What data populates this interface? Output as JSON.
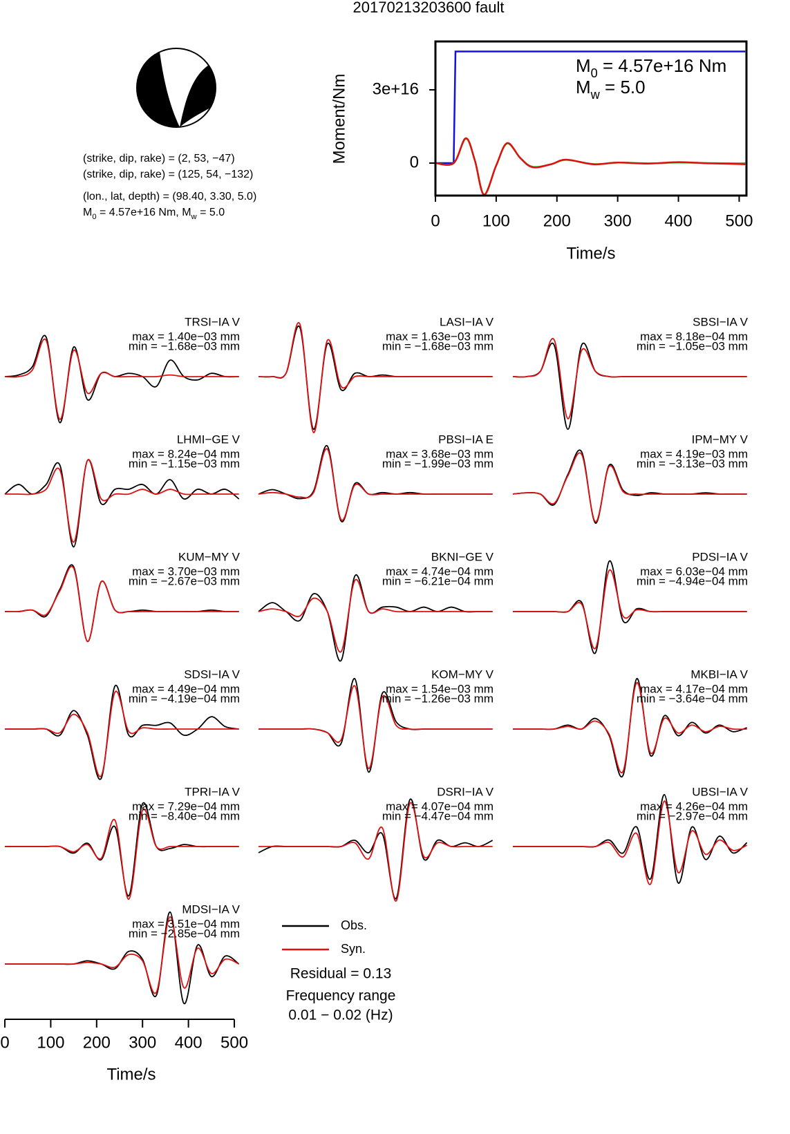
{
  "title": "20170213203600 fault",
  "mechanism": {
    "planes": [
      "(strike, dip, rake) = (2, 53, −47)",
      "(strike, dip, rake) = (125, 54, −132)"
    ],
    "location": "(lon., lat, depth) = (98.40, 3.30, 5.0)",
    "magnitude_parts": [
      {
        "text": "M"
      },
      {
        "sub": "0"
      },
      {
        "text": " = 4.57e+16 Nm, M"
      },
      {
        "sub": "w"
      },
      {
        "text": " = 5.0"
      }
    ]
  },
  "moment_chart": {
    "type": "line",
    "xlabel": "Time/s",
    "ylabel": "Moment/Nm",
    "xlim": [
      0,
      512
    ],
    "ylim": [
      -1.33e+16,
      4.98e+16
    ],
    "xticks": [
      0,
      100,
      200,
      300,
      400,
      500
    ],
    "yticks": [
      0,
      {
        "value": 3e+16,
        "label": "3e+16"
      }
    ],
    "annotations": [
      [
        {
          "text": "M"
        },
        {
          "sub": "0"
        },
        {
          "text": " = 4.57e+16 Nm"
        }
      ],
      [
        {
          "text": "M"
        },
        {
          "sub": "w"
        },
        {
          "text": " = 5.0"
        }
      ]
    ],
    "series": [
      {
        "color": "#1010e0",
        "curve": "linear",
        "x": [
          0,
          30,
          33,
          510
        ],
        "values": [
          0,
          0,
          4.57e+16,
          4.57e+16
        ]
      },
      {
        "color": "#20c020",
        "curve": "smooth",
        "x": [
          0,
          30,
          50,
          65,
          80,
          100,
          118,
          140,
          160,
          190,
          215,
          260,
          300,
          350,
          400,
          450,
          500,
          510
        ],
        "values": [
          0,
          0,
          1e+16,
          1000000000000000.0,
          -1.28e+16,
          -1000000000000000.0,
          8000000000000000.0,
          2000000000000000.0,
          -1500000000000000.0,
          -500000000000000.0,
          1300000000000000.0,
          -400000000000000.0,
          200000000000000.0,
          -100000000000000.0,
          200000000000000.0,
          0,
          -100000000000000.0,
          0
        ]
      },
      {
        "color": "#e01010",
        "curve": "smooth",
        "x": [
          0,
          30,
          50,
          65,
          80,
          100,
          118,
          140,
          160,
          190,
          215,
          260,
          300,
          350,
          400,
          450,
          500,
          510
        ],
        "values": [
          0,
          0,
          1.02e+16,
          1000000000000000.0,
          -1.3e+16,
          -1000000000000000.0,
          8200000000000000.0,
          2000000000000000.0,
          -1700000000000000.0,
          -500000000000000.0,
          1400000000000000.0,
          -500000000000000.0,
          200000000000000.0,
          -200000000000000.0,
          400000000000000.0,
          -100000000000000.0,
          -400000000000000.0,
          -500000000000000.0
        ]
      }
    ]
  },
  "waveform_axis": {
    "xlabel": "Time/s",
    "xlim": [
      0,
      512
    ],
    "xticks": [
      0,
      100,
      200,
      300,
      400,
      500
    ],
    "x": [
      0,
      30,
      60,
      90,
      120,
      150,
      180,
      210,
      240,
      270,
      300,
      330,
      360,
      390,
      420,
      450,
      480,
      510
    ],
    "obs_color": "#000000",
    "syn_color": "#e01010"
  },
  "stations": [
    {
      "name": "TRSI−IA V",
      "max": {
        "value": 0.0014,
        "label": "max = 1.40e−03 mm"
      },
      "min": {
        "value": -0.00168,
        "label": "min = −1.68e−03 mm"
      },
      "obs": [
        0,
        5e-05,
        0.0003,
        0.0012,
        -0.0014,
        0.0009,
        -0.0007,
        0.0001,
        0,
        0.0001,
        0,
        -0.0003,
        0.0005,
        0,
        -0.0001,
        0.0001,
        0,
        0
      ],
      "syn": [
        0,
        0,
        0.0002,
        0.0011,
        -0.0013,
        0.0008,
        -0.0005,
        0.0001,
        0,
        0,
        0,
        0,
        5e-05,
        0,
        0,
        0,
        0,
        0
      ]
    },
    {
      "name": "LASI−IA V",
      "max": {
        "value": 0.00163,
        "label": "max = 1.63e−03 mm"
      },
      "min": {
        "value": -0.00168,
        "label": "min = −1.68e−03 mm"
      },
      "obs": [
        0,
        0,
        0.0001,
        0.0015,
        -0.0016,
        0.001,
        -0.0004,
        0.0001,
        0,
        5e-05,
        0,
        0,
        0,
        0,
        0,
        0,
        0,
        0
      ],
      "syn": [
        0,
        0,
        0.0001,
        0.0016,
        -0.0017,
        0.0011,
        -0.0003,
        0,
        0,
        0,
        0,
        0,
        0,
        0,
        0,
        0,
        0,
        0
      ]
    },
    {
      "name": "SBSI−IA V",
      "max": {
        "value": 0.000818,
        "label": "max = 8.18e−04 mm"
      },
      "min": {
        "value": -0.00105,
        "label": "min = −1.05e−03 mm"
      },
      "obs": [
        0,
        0,
        0.0001,
        0.0006,
        -0.001,
        0.0006,
        0.0001,
        0,
        0,
        0,
        0,
        0,
        0,
        0,
        0,
        0,
        0,
        0
      ],
      "syn": [
        0,
        0,
        0.0001,
        0.0007,
        -0.0008,
        0.0005,
        0.0001,
        0,
        0,
        0,
        0,
        0,
        0,
        0,
        0,
        0,
        0,
        0
      ]
    },
    {
      "name": "LHMI−GE V",
      "max": {
        "value": 0.000824,
        "label": "max = 8.24e−04 mm"
      },
      "min": {
        "value": -0.00115,
        "label": "min = −1.15e−03 mm"
      },
      "obs": [
        0,
        0.0002,
        0,
        0.0002,
        0.0006,
        -0.0011,
        0.0007,
        -0.0002,
        0.0001,
        0.0001,
        0.0002,
        0,
        0.0003,
        -0.0001,
        0.0001,
        0,
        0.0001,
        -0.0001
      ],
      "syn": [
        0,
        0,
        0,
        0.0001,
        0.0005,
        -0.001,
        0.0007,
        -0.0001,
        0,
        0,
        0.0001,
        0,
        0.0001,
        0,
        0,
        0,
        0,
        0
      ]
    },
    {
      "name": "PBSI−IA E",
      "max": {
        "value": 0.00368,
        "label": "max = 3.68e−03 mm"
      },
      "min": {
        "value": -0.00199,
        "label": "min = −1.99e−03 mm"
      },
      "obs": [
        0,
        0.0003,
        0,
        -0.0003,
        0.0002,
        0.0032,
        -0.0018,
        0.0007,
        0,
        0.0001,
        0,
        0.0001,
        0,
        0,
        0,
        0,
        0,
        0
      ],
      "syn": [
        0,
        0.0001,
        0,
        -0.0002,
        0.0001,
        0.003,
        -0.0017,
        0.0006,
        0,
        0,
        0,
        0,
        0,
        0,
        0,
        0,
        0,
        0
      ]
    },
    {
      "name": "IPM−MY V",
      "max": {
        "value": 0.00419,
        "label": "max = 4.19e−03 mm"
      },
      "min": {
        "value": -0.00313,
        "label": "min = −3.13e−03 mm"
      },
      "obs": [
        0,
        0.0001,
        0,
        -0.0008,
        0.0015,
        0.0032,
        -0.0022,
        0.0022,
        0.0003,
        -0.0001,
        0.0001,
        0,
        0,
        0,
        0.0001,
        0,
        0,
        0
      ],
      "syn": [
        0,
        0.0001,
        0,
        -0.0007,
        0.0014,
        0.003,
        -0.0021,
        0.0021,
        0.0002,
        0,
        0,
        0,
        0,
        0,
        0,
        0,
        0,
        0
      ]
    },
    {
      "name": "KUM−MY V",
      "max": {
        "value": 0.0037,
        "label": "max = 3.70e−03 mm"
      },
      "min": {
        "value": -0.00267,
        "label": "min = −2.67e−03 mm"
      },
      "obs": [
        0,
        0,
        0.0001,
        -0.0003,
        0.0015,
        0.003,
        -0.002,
        0.002,
        0.0001,
        0,
        0.0001,
        0,
        0,
        0,
        0,
        0.0001,
        0,
        0
      ],
      "syn": [
        0,
        0,
        0.0001,
        -0.0002,
        0.0014,
        0.0029,
        -0.002,
        0.002,
        0.0001,
        0,
        0,
        0,
        0,
        0,
        0,
        0,
        0,
        0
      ]
    },
    {
      "name": "BKNI−GE V",
      "max": {
        "value": 0.000474,
        "label": "max = 4.74e−04 mm"
      },
      "min": {
        "value": -0.000621,
        "label": "min = −6.21e−04 mm"
      },
      "obs": [
        0,
        0.0001,
        0,
        -0.0001,
        0.0002,
        0,
        -0.00055,
        0.0004,
        0,
        5e-05,
        5e-05,
        0,
        5e-05,
        0,
        5e-05,
        0,
        0,
        0
      ],
      "syn": [
        0,
        3e-05,
        0,
        -5e-05,
        0.00015,
        0,
        -0.00045,
        0.00035,
        0,
        3e-05,
        0,
        0,
        0,
        0,
        0,
        0,
        0,
        0
      ]
    },
    {
      "name": "PDSI−IA V",
      "max": {
        "value": 0.000603,
        "label": "max = 6.03e−04 mm"
      },
      "min": {
        "value": -0.000494,
        "label": "min = −4.94e−04 mm"
      },
      "obs": [
        0,
        0,
        0,
        0,
        0,
        0.0001,
        -0.00045,
        0.00055,
        -0.0001,
        3e-05,
        0,
        0,
        0,
        0,
        0,
        0,
        0,
        0
      ],
      "syn": [
        0,
        0,
        0,
        0,
        0,
        8e-05,
        -0.0004,
        0.00045,
        -5e-05,
        2e-05,
        0,
        0,
        0,
        0,
        0,
        0,
        0,
        0
      ]
    },
    {
      "name": "SDSI−IA V",
      "max": {
        "value": 0.000449,
        "label": "max = 4.49e−04 mm"
      },
      "min": {
        "value": -0.000419,
        "label": "min = −4.19e−04 mm"
      },
      "obs": [
        0,
        0,
        0,
        0,
        -5e-05,
        0.00015,
        -5e-05,
        -0.0004,
        0.00035,
        -5e-05,
        3e-05,
        3e-05,
        5e-05,
        -5e-05,
        0,
        0.0001,
        2e-05,
        0
      ],
      "syn": [
        0,
        0,
        0,
        0,
        -3e-05,
        0.00012,
        -3e-05,
        -0.00038,
        0.0003,
        -2e-05,
        1e-05,
        0,
        0,
        0,
        0,
        0,
        0,
        0
      ]
    },
    {
      "name": "KOM−MY V",
      "max": {
        "value": 0.00154,
        "label": "max = 1.54e−03 mm"
      },
      "min": {
        "value": -0.00126,
        "label": "min = −1.26e−03 mm"
      },
      "obs": [
        0,
        0,
        0,
        0,
        0,
        -0.0001,
        -0.0004,
        0.0014,
        -0.0012,
        0.001,
        0.0002,
        0,
        0,
        0,
        0,
        0,
        0,
        0
      ],
      "syn": [
        0,
        0,
        0,
        0,
        0,
        -0.0001,
        -0.0003,
        0.0012,
        -0.0011,
        0.0009,
        0.0001,
        0,
        0,
        0,
        0,
        0,
        0,
        0
      ]
    },
    {
      "name": "MKBI−IA V",
      "max": {
        "value": 0.000417,
        "label": "max = 4.17e−04 mm"
      },
      "min": {
        "value": -0.000364,
        "label": "min = −3.64e−04 mm"
      },
      "obs": [
        0,
        0,
        0,
        0,
        3e-05,
        0,
        8e-05,
        -5e-05,
        -0.00035,
        0.00038,
        -0.0002,
        0.0001,
        -5e-05,
        5e-05,
        -3e-05,
        3e-05,
        -2e-05,
        1e-05
      ],
      "syn": [
        0,
        0,
        0,
        0,
        2e-05,
        0,
        6e-05,
        -4e-05,
        -0.00032,
        0.00035,
        -0.00018,
        8e-05,
        -3e-05,
        3e-05,
        -2e-05,
        2e-05,
        0,
        0
      ]
    },
    {
      "name": "TPRI−IA V",
      "max": {
        "value": 0.000729,
        "label": "max = 7.29e−04 mm"
      },
      "min": {
        "value": -0.00084,
        "label": "min = −8.40e−04 mm"
      },
      "obs": [
        0,
        0,
        0,
        0,
        0,
        -0.0001,
        5e-05,
        -0.0002,
        0.0003,
        -0.00075,
        0.00065,
        0,
        -3e-05,
        3e-05,
        0,
        0,
        0,
        0
      ],
      "syn": [
        0,
        0,
        0,
        0,
        0,
        -8e-05,
        3e-05,
        -0.00018,
        0.0004,
        -0.0008,
        0.00055,
        0,
        0,
        0,
        0,
        0,
        0,
        0
      ]
    },
    {
      "name": "DSRI−IA V",
      "max": {
        "value": 0.000407,
        "label": "max = 4.07e−04 mm"
      },
      "min": {
        "value": -0.000447,
        "label": "min = −4.47e−04 mm"
      },
      "obs": [
        -5e-05,
        0,
        0,
        0,
        0,
        0,
        0,
        5e-05,
        -5e-05,
        0.0001,
        -0.00042,
        0.00038,
        -0.0001,
        5e-05,
        0,
        3e-05,
        0,
        5e-05
      ],
      "syn": [
        0,
        0,
        0,
        0,
        0,
        0,
        0,
        3e-05,
        -0.0001,
        0.00015,
        -0.00044,
        0.00035,
        -8e-05,
        3e-05,
        0,
        0,
        0,
        0
      ]
    },
    {
      "name": "UBSI−IA V",
      "max": {
        "value": 0.000426,
        "label": "max = 4.26e−04 mm"
      },
      "min": {
        "value": -0.000297,
        "label": "min = −2.97e−04 mm"
      },
      "obs": [
        0,
        0,
        0,
        0,
        0,
        0,
        0,
        5e-05,
        -5e-05,
        0.00015,
        -0.00025,
        0.0004,
        -0.00028,
        0.00015,
        -0.0001,
        8e-05,
        -5e-05,
        3e-05
      ],
      "syn": [
        0,
        0,
        0,
        0,
        0,
        0,
        0,
        3e-05,
        -8e-05,
        0.0001,
        -0.00029,
        0.00035,
        -0.0002,
        0.00012,
        -6e-05,
        5e-05,
        -3e-05,
        1e-05
      ]
    },
    {
      "name": "MDSI−IA V",
      "max": {
        "value": 0.000351,
        "label": "max = 3.51e−04 mm"
      },
      "min": {
        "value": -0.000285,
        "label": "min = −2.85e−04 mm"
      },
      "obs": [
        0,
        0,
        0,
        0,
        0,
        0,
        2e-05,
        0,
        -3e-05,
        8e-05,
        3e-05,
        -0.0002,
        0.00033,
        -0.00025,
        0.00012,
        -8e-05,
        5e-05,
        0
      ],
      "syn": [
        0,
        0,
        0,
        0,
        0,
        0,
        1e-05,
        0,
        -2e-05,
        6e-05,
        2e-05,
        -0.00018,
        0.0003,
        -0.00015,
        0.0001,
        -6e-05,
        3e-05,
        0
      ]
    }
  ],
  "legend": {
    "obs": "Obs.",
    "syn": "Syn."
  },
  "residual": "Residual = 0.13",
  "frequency": {
    "label": "Frequency range",
    "range": "0.01 − 0.02 (Hz)"
  }
}
